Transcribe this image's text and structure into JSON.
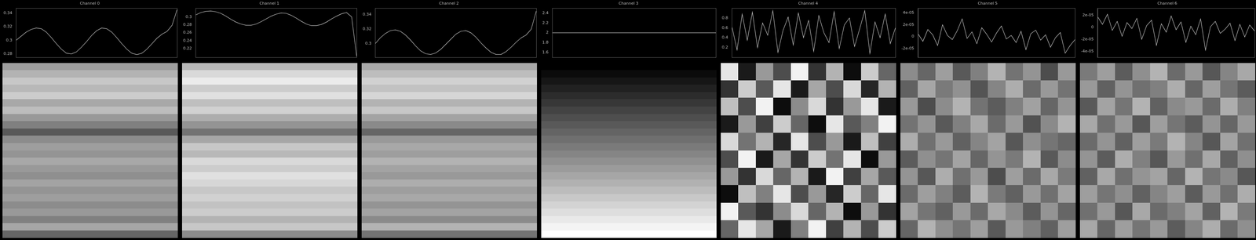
{
  "chart_data": [
    {
      "type": "line",
      "title": "Channel 0",
      "color": "#d0d0d0",
      "grid": false,
      "tick_labels": "y",
      "x": [
        0,
        1,
        2,
        3,
        4,
        5,
        6,
        7,
        8,
        9,
        10,
        11,
        12,
        13,
        14,
        15,
        16,
        17,
        18,
        19,
        20,
        21,
        22,
        23,
        24,
        25,
        26,
        27,
        28,
        29,
        30,
        31,
        32
      ],
      "values": [
        0.3,
        0.306,
        0.312,
        0.316,
        0.318,
        0.317,
        0.312,
        0.304,
        0.295,
        0.287,
        0.281,
        0.28,
        0.283,
        0.29,
        0.298,
        0.307,
        0.314,
        0.318,
        0.317,
        0.312,
        0.304,
        0.295,
        0.287,
        0.281,
        0.279,
        0.281,
        0.287,
        0.295,
        0.303,
        0.309,
        0.313,
        0.322,
        0.345
      ],
      "xlim": [
        0,
        32
      ],
      "ylim": [
        0.275,
        0.347
      ],
      "yticks": [
        0.28,
        0.3,
        0.32,
        0.34
      ],
      "heatmap": {
        "range": [
          0,
          1
        ],
        "cells": [
          [
            0.62
          ],
          [
            0.7
          ],
          [
            0.78
          ],
          [
            0.72
          ],
          [
            0.8
          ],
          [
            0.66
          ],
          [
            0.74
          ],
          [
            0.6
          ],
          [
            0.5
          ],
          [
            0.35
          ],
          [
            0.55
          ],
          [
            0.62
          ],
          [
            0.58
          ],
          [
            0.66
          ],
          [
            0.6
          ],
          [
            0.56
          ],
          [
            0.64
          ],
          [
            0.58
          ],
          [
            0.62
          ],
          [
            0.55
          ],
          [
            0.6
          ],
          [
            0.5
          ],
          [
            0.65
          ],
          [
            0.4
          ]
        ]
      }
    },
    {
      "type": "line",
      "title": "Channel 1",
      "color": "#d0d0d0",
      "grid": false,
      "tick_labels": "y",
      "x": [
        0,
        1,
        2,
        3,
        4,
        5,
        6,
        7,
        8,
        9,
        10,
        11,
        12,
        13,
        14,
        15,
        16,
        17,
        18,
        19,
        20,
        21,
        22,
        23,
        24,
        25,
        26,
        27,
        28,
        29,
        30,
        31,
        32
      ],
      "values": [
        0.305,
        0.311,
        0.314,
        0.315,
        0.313,
        0.309,
        0.302,
        0.294,
        0.287,
        0.282,
        0.279,
        0.279,
        0.282,
        0.288,
        0.295,
        0.302,
        0.307,
        0.31,
        0.309,
        0.304,
        0.297,
        0.289,
        0.282,
        0.278,
        0.278,
        0.281,
        0.287,
        0.295,
        0.302,
        0.308,
        0.311,
        0.3,
        0.2
      ],
      "xlim": [
        0,
        32
      ],
      "ylim": [
        0.198,
        0.322
      ],
      "yticks": [
        0.22,
        0.24,
        0.26,
        0.28,
        0.3
      ],
      "heatmap": {
        "range": [
          0,
          1
        ],
        "cells": [
          [
            0.72
          ],
          [
            0.85
          ],
          [
            0.92
          ],
          [
            0.8
          ],
          [
            0.88
          ],
          [
            0.75
          ],
          [
            0.82
          ],
          [
            0.68
          ],
          [
            0.58
          ],
          [
            0.45
          ],
          [
            0.65
          ],
          [
            0.78
          ],
          [
            0.72
          ],
          [
            0.85
          ],
          [
            0.8
          ],
          [
            0.88
          ],
          [
            0.84
          ],
          [
            0.78
          ],
          [
            0.82
          ],
          [
            0.76
          ],
          [
            0.8
          ],
          [
            0.7
          ],
          [
            0.78
          ],
          [
            0.55
          ]
        ]
      }
    },
    {
      "type": "line",
      "title": "Channel 2",
      "color": "#d0d0d0",
      "grid": false,
      "tick_labels": "y",
      "x": [
        0,
        1,
        2,
        3,
        4,
        5,
        6,
        7,
        8,
        9,
        10,
        11,
        12,
        13,
        14,
        15,
        16,
        17,
        18,
        19,
        20,
        21,
        22,
        23,
        24,
        25,
        26,
        27,
        28,
        29,
        30,
        31,
        32
      ],
      "values": [
        0.3,
        0.308,
        0.314,
        0.318,
        0.319,
        0.317,
        0.312,
        0.305,
        0.297,
        0.29,
        0.286,
        0.285,
        0.287,
        0.292,
        0.299,
        0.306,
        0.313,
        0.317,
        0.318,
        0.315,
        0.309,
        0.301,
        0.294,
        0.288,
        0.285,
        0.285,
        0.289,
        0.295,
        0.302,
        0.308,
        0.312,
        0.32,
        0.345
      ],
      "xlim": [
        0,
        32
      ],
      "ylim": [
        0.281,
        0.349
      ],
      "yticks": [
        0.3,
        0.32,
        0.34
      ],
      "heatmap": {
        "range": [
          0,
          1
        ],
        "cells": [
          [
            0.66
          ],
          [
            0.74
          ],
          [
            0.82
          ],
          [
            0.76
          ],
          [
            0.84
          ],
          [
            0.7
          ],
          [
            0.78
          ],
          [
            0.64
          ],
          [
            0.54
          ],
          [
            0.4
          ],
          [
            0.6
          ],
          [
            0.66
          ],
          [
            0.62
          ],
          [
            0.7
          ],
          [
            0.64
          ],
          [
            0.6
          ],
          [
            0.68
          ],
          [
            0.62
          ],
          [
            0.66
          ],
          [
            0.58
          ],
          [
            0.64
          ],
          [
            0.54
          ],
          [
            0.7
          ],
          [
            0.45
          ]
        ]
      }
    },
    {
      "type": "line",
      "title": "Channel 3",
      "color": "#d0d0d0",
      "grid": false,
      "tick_labels": "y",
      "x": [
        0,
        1,
        2,
        3,
        4,
        5,
        6,
        7,
        8,
        9,
        10,
        11,
        12,
        13,
        14,
        15,
        16,
        17,
        18,
        19,
        20,
        21,
        22,
        23,
        24,
        25,
        26,
        27,
        28,
        29,
        30,
        31,
        32
      ],
      "values": [
        2,
        2,
        2,
        2,
        2,
        2,
        2,
        2,
        2,
        2,
        2,
        2,
        2,
        2,
        2,
        2,
        2,
        2,
        2,
        2,
        2,
        2,
        2,
        2,
        2,
        2,
        2,
        2,
        2,
        2,
        2,
        2,
        2
      ],
      "xlim": [
        0,
        32
      ],
      "ylim": [
        1.5,
        2.5
      ],
      "yticks": [
        1.6,
        1.8,
        2,
        2.2,
        2.4
      ],
      "heatmap": {
        "range": [
          0,
          1
        ],
        "cells": [
          [
            0
          ],
          [
            0.043
          ],
          [
            0.087
          ],
          [
            0.13
          ],
          [
            0.174
          ],
          [
            0.217
          ],
          [
            0.261
          ],
          [
            0.304
          ],
          [
            0.348
          ],
          [
            0.391
          ],
          [
            0.435
          ],
          [
            0.478
          ],
          [
            0.522
          ],
          [
            0.565
          ],
          [
            0.609
          ],
          [
            0.652
          ],
          [
            0.696
          ],
          [
            0.739
          ],
          [
            0.783
          ],
          [
            0.826
          ],
          [
            0.87
          ],
          [
            0.913
          ],
          [
            0.957
          ],
          [
            1
          ]
        ]
      }
    },
    {
      "type": "line",
      "title": "Channel 4",
      "color": "#d0d0d0",
      "grid": false,
      "tick_labels": "y",
      "x": [
        0,
        1,
        2,
        3,
        4,
        5,
        6,
        7,
        8,
        9,
        10,
        11,
        12,
        13,
        14,
        15,
        16,
        17,
        18,
        19,
        20,
        21,
        22,
        23,
        24,
        25,
        26,
        27,
        28,
        29,
        30,
        31,
        32
      ],
      "values": [
        0.62,
        0.15,
        0.88,
        0.35,
        0.92,
        0.2,
        0.7,
        0.45,
        0.95,
        0.1,
        0.55,
        0.82,
        0.25,
        0.9,
        0.4,
        0.75,
        0.12,
        0.85,
        0.5,
        0.3,
        0.93,
        0.18,
        0.66,
        0.8,
        0.22,
        0.58,
        0.95,
        0.08,
        0.72,
        0.4,
        0.88,
        0.28,
        0.6
      ],
      "xlim": [
        0,
        32
      ],
      "ylim": [
        0,
        1
      ],
      "yticks": [
        0.2,
        0.4,
        0.6,
        0.8
      ],
      "heatmap": {
        "range": [
          0,
          1
        ],
        "cells": [
          [
            0.9,
            0.1,
            0.6,
            0.3,
            0.95,
            0.2,
            0.7,
            0.05,
            0.8,
            0.4
          ],
          [
            0.2,
            0.8,
            0.35,
            0.9,
            0.1,
            0.65,
            0.3,
            0.85,
            0.15,
            0.7
          ],
          [
            0.75,
            0.3,
            0.95,
            0.05,
            0.55,
            0.85,
            0.2,
            0.6,
            0.9,
            0.1
          ],
          [
            0.1,
            0.6,
            0.25,
            0.8,
            0.4,
            0.05,
            0.9,
            0.35,
            0.5,
            0.95
          ],
          [
            0.85,
            0.45,
            0.7,
            0.15,
            0.9,
            0.3,
            0.6,
            0.1,
            0.75,
            0.25
          ],
          [
            0.3,
            0.95,
            0.1,
            0.65,
            0.2,
            0.8,
            0.45,
            0.9,
            0.05,
            0.6
          ],
          [
            0.6,
            0.2,
            0.85,
            0.4,
            0.7,
            0.1,
            0.95,
            0.25,
            0.65,
            0.35
          ],
          [
            0.05,
            0.75,
            0.5,
            0.9,
            0.3,
            0.6,
            0.15,
            0.8,
            0.4,
            0.9
          ],
          [
            0.95,
            0.35,
            0.2,
            0.55,
            0.85,
            0.4,
            0.7,
            0.05,
            0.6,
            0.2
          ],
          [
            0.4,
            0.9,
            0.65,
            0.1,
            0.5,
            0.95,
            0.25,
            0.7,
            0.3,
            0.8
          ]
        ]
      }
    },
    {
      "type": "line",
      "title": "Channel 5",
      "color": "#d0d0d0",
      "grid": false,
      "tick_labels": "y",
      "x": [
        0,
        1,
        2,
        3,
        4,
        5,
        6,
        7,
        8,
        9,
        10,
        11,
        12,
        13,
        14,
        15,
        16,
        17,
        18,
        19,
        20,
        21,
        22,
        23,
        24,
        25,
        26,
        27,
        28,
        29,
        30,
        31,
        32
      ],
      "values": [
        5e-06,
        -8e-06,
        1.2e-05,
        3e-06,
        -1.5e-05,
        2e-05,
        2e-06,
        -5e-06,
        1e-05,
        3e-05,
        -3e-06,
        8e-06,
        -1.2e-05,
        1.5e-05,
        4e-06,
        -9e-06,
        6e-06,
        1.8e-05,
        -4e-06,
        2e-06,
        -1e-05,
        9e-06,
        -2.2e-05,
        5e-06,
        1.1e-05,
        -6e-06,
        3e-06,
        -1.8e-05,
        -2e-06,
        7e-06,
        -2.8e-05,
        -1.5e-05,
        -5e-06
      ],
      "xlim": [
        0,
        32
      ],
      "ylim": [
        -3.5e-05,
        4.8e-05
      ],
      "yticks": [
        {
          "value": -2e-05,
          "label": "-2e-05"
        },
        0,
        {
          "value": 2e-05,
          "label": "2e-05"
        },
        {
          "value": 4e-05,
          "label": "4e-05"
        }
      ],
      "heatmap": {
        "range": [
          0,
          1
        ],
        "cells": [
          [
            0.55,
            0.4,
            0.62,
            0.35,
            0.5,
            0.7,
            0.45,
            0.58,
            0.3,
            0.6
          ],
          [
            0.38,
            0.65,
            0.48,
            0.57,
            0.33,
            0.52,
            0.68,
            0.42,
            0.6,
            0.45
          ],
          [
            0.6,
            0.3,
            0.55,
            0.7,
            0.45,
            0.36,
            0.5,
            0.63,
            0.4,
            0.58
          ],
          [
            0.45,
            0.58,
            0.35,
            0.5,
            0.66,
            0.42,
            0.6,
            0.32,
            0.54,
            0.7
          ],
          [
            0.68,
            0.44,
            0.6,
            0.38,
            0.52,
            0.64,
            0.34,
            0.56,
            0.46,
            0.4
          ],
          [
            0.36,
            0.56,
            0.46,
            0.64,
            0.4,
            0.58,
            0.48,
            0.7,
            0.35,
            0.55
          ],
          [
            0.58,
            0.34,
            0.68,
            0.44,
            0.6,
            0.3,
            0.62,
            0.42,
            0.66,
            0.48
          ],
          [
            0.42,
            0.62,
            0.5,
            0.36,
            0.7,
            0.48,
            0.38,
            0.6,
            0.44,
            0.64
          ],
          [
            0.64,
            0.46,
            0.38,
            0.6,
            0.42,
            0.66,
            0.54,
            0.36,
            0.58,
            0.4
          ],
          [
            0.4,
            0.7,
            0.56,
            0.46,
            0.62,
            0.35,
            0.6,
            0.5,
            0.38,
            0.62
          ]
        ]
      }
    },
    {
      "type": "line",
      "title": "Channel 6",
      "color": "#d0d0d0",
      "grid": false,
      "tick_labels": "y",
      "x": [
        0,
        1,
        2,
        3,
        4,
        5,
        6,
        7,
        8,
        9,
        10,
        11,
        12,
        13,
        14,
        15,
        16,
        17,
        18,
        19,
        20,
        21,
        22,
        23,
        24,
        25,
        26,
        27,
        28,
        29,
        30,
        31,
        32
      ],
      "values": [
        1.8e-05,
        5e-06,
        2.2e-05,
        -5e-06,
        1e-05,
        -1.5e-05,
        8e-06,
        -2e-06,
        1.5e-05,
        -2e-05,
        3e-06,
        1.2e-05,
        -3e-05,
        6e-06,
        -8e-06,
        1.9e-05,
        -4e-06,
        9e-06,
        -2.5e-05,
        2e-06,
        -1.2e-05,
        1.4e-05,
        -3.8e-05,
        1e-06,
        1e-05,
        -1e-05,
        -3e-06,
        7e-06,
        -2.2e-05,
        5e-06,
        -1.6e-05,
        4e-06,
        -6e-06
      ],
      "xlim": [
        0,
        32
      ],
      "ylim": [
        -5e-05,
        3.2e-05
      ],
      "yticks": [
        {
          "value": -4e-05,
          "label": "-4e-05"
        },
        {
          "value": -2e-05,
          "label": "-2e-05"
        },
        0,
        {
          "value": 2e-05,
          "label": "2e-05"
        }
      ],
      "heatmap": {
        "range": [
          0,
          1
        ],
        "cells": [
          [
            0.48,
            0.62,
            0.36,
            0.56,
            0.7,
            0.42,
            0.6,
            0.34,
            0.52,
            0.66
          ],
          [
            0.6,
            0.38,
            0.58,
            0.44,
            0.5,
            0.68,
            0.4,
            0.62,
            0.46,
            0.36
          ],
          [
            0.35,
            0.64,
            0.46,
            0.7,
            0.38,
            0.54,
            0.6,
            0.42,
            0.68,
            0.5
          ],
          [
            0.66,
            0.44,
            0.6,
            0.34,
            0.62,
            0.46,
            0.36,
            0.58,
            0.4,
            0.6
          ],
          [
            0.42,
            0.58,
            0.38,
            0.62,
            0.48,
            0.7,
            0.52,
            0.34,
            0.64,
            0.44
          ],
          [
            0.58,
            0.36,
            0.68,
            0.5,
            0.34,
            0.6,
            0.44,
            0.66,
            0.38,
            0.56
          ],
          [
            0.38,
            0.66,
            0.44,
            0.58,
            0.64,
            0.4,
            0.7,
            0.46,
            0.54,
            0.34
          ],
          [
            0.62,
            0.46,
            0.56,
            0.38,
            0.52,
            0.62,
            0.36,
            0.6,
            0.44,
            0.68
          ],
          [
            0.44,
            0.6,
            0.34,
            0.66,
            0.42,
            0.5,
            0.64,
            0.38,
            0.7,
            0.48
          ],
          [
            0.66,
            0.4,
            0.62,
            0.46,
            0.6,
            0.36,
            0.52,
            0.68,
            0.42,
            0.56
          ]
        ]
      }
    }
  ]
}
